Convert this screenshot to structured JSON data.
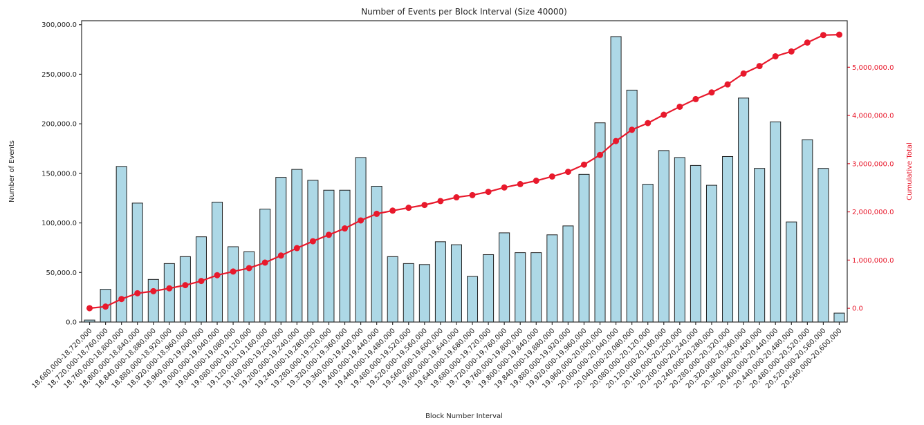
{
  "chart_data": {
    "type": "bar",
    "title": "Number of Events per Block Interval (Size 40000)",
    "xlabel": "Block Number Interval",
    "ylabel": "Number of Events",
    "ylabel_right": "Cumulative Total",
    "grid": false,
    "legend": "none",
    "categories": [
      "18,680,000-18,720,000",
      "18,720,000-18,760,000",
      "18,760,000-18,800,000",
      "18,800,000-18,840,000",
      "18,840,000-18,880,000",
      "18,880,000-18,920,000",
      "18,920,000-18,960,000",
      "18,960,000-19,000,000",
      "19,000,000-19,040,000",
      "19,040,000-19,080,000",
      "19,080,000-19,120,000",
      "19,120,000-19,160,000",
      "19,160,000-19,200,000",
      "19,200,000-19,240,000",
      "19,240,000-19,280,000",
      "19,280,000-19,320,000",
      "19,320,000-19,360,000",
      "19,360,000-19,400,000",
      "19,400,000-19,440,000",
      "19,440,000-19,480,000",
      "19,480,000-19,520,000",
      "19,520,000-19,560,000",
      "19,560,000-19,600,000",
      "19,600,000-19,640,000",
      "19,640,000-19,680,000",
      "19,680,000-19,720,000",
      "19,720,000-19,760,000",
      "19,760,000-19,800,000",
      "19,800,000-19,840,000",
      "19,840,000-19,880,000",
      "19,880,000-19,920,000",
      "19,920,000-19,960,000",
      "19,960,000-20,000,000",
      "20,000,000-20,040,000",
      "20,040,000-20,080,000",
      "20,080,000-20,120,000",
      "20,120,000-20,160,000",
      "20,160,000-20,200,000",
      "20,200,000-20,240,000",
      "20,240,000-20,280,000",
      "20,280,000-20,320,000",
      "20,320,000-20,360,000",
      "20,360,000-20,400,000",
      "20,400,000-20,440,000",
      "20,440,000-20,480,000",
      "20,480,000-20,520,000",
      "20,520,000-20,560,000",
      "20,560,000-20,600,000"
    ],
    "series": [
      {
        "name": "Number of Events",
        "type": "bar",
        "axis": "left",
        "values": [
          2000,
          33000,
          157000,
          120000,
          43000,
          59000,
          66000,
          86000,
          121000,
          76000,
          71000,
          114000,
          146000,
          154000,
          143000,
          133000,
          133000,
          166000,
          137000,
          66000,
          59000,
          58000,
          81000,
          78000,
          46000,
          68000,
          90000,
          70000,
          70000,
          88000,
          97000,
          149000,
          201000,
          288000,
          234000,
          139000,
          173000,
          166000,
          158000,
          138000,
          167000,
          226000,
          155000,
          202000,
          101000,
          184000,
          155000,
          9000
        ]
      },
      {
        "name": "Cumulative Total",
        "type": "line",
        "axis": "right",
        "values": [
          2000,
          35000,
          192000,
          312000,
          355000,
          414000,
          480000,
          566000,
          687000,
          763000,
          834000,
          948000,
          1094000,
          1248000,
          1391000,
          1524000,
          1657000,
          1823000,
          1960000,
          2026000,
          2085000,
          2143000,
          2224000,
          2302000,
          2348000,
          2416000,
          2506000,
          2576000,
          2646000,
          2734000,
          2831000,
          2980000,
          3181000,
          3469000,
          3703000,
          3842000,
          4015000,
          4181000,
          4339000,
          4477000,
          4644000,
          4870000,
          5025000,
          5227000,
          5328000,
          5512000,
          5667000,
          5676000
        ]
      }
    ],
    "left_axis": {
      "ticks": [
        0,
        50000,
        100000,
        150000,
        200000,
        250000,
        300000
      ],
      "tick_labels": [
        "0.0",
        "50,000.0",
        "100,000.0",
        "150,000.0",
        "200,000.0",
        "250,000.0",
        "300,000.0"
      ],
      "lim": [
        0,
        304000
      ]
    },
    "right_axis": {
      "ticks": [
        0,
        1000000,
        2000000,
        3000000,
        4000000,
        5000000
      ],
      "tick_labels": [
        "0.0",
        "1,000,000.0",
        "2,000,000.0",
        "3,000,000.0",
        "4,000,000.0",
        "5,000,000.0"
      ],
      "lim": [
        -285000,
        5965000
      ]
    },
    "colors": {
      "bar_fill": "#add8e6",
      "bar_edge": "#1f1f1f",
      "line": "#e8192c",
      "text": "#1f1f1f",
      "spine": "#2b2b2b",
      "background": "#ffffff"
    }
  }
}
